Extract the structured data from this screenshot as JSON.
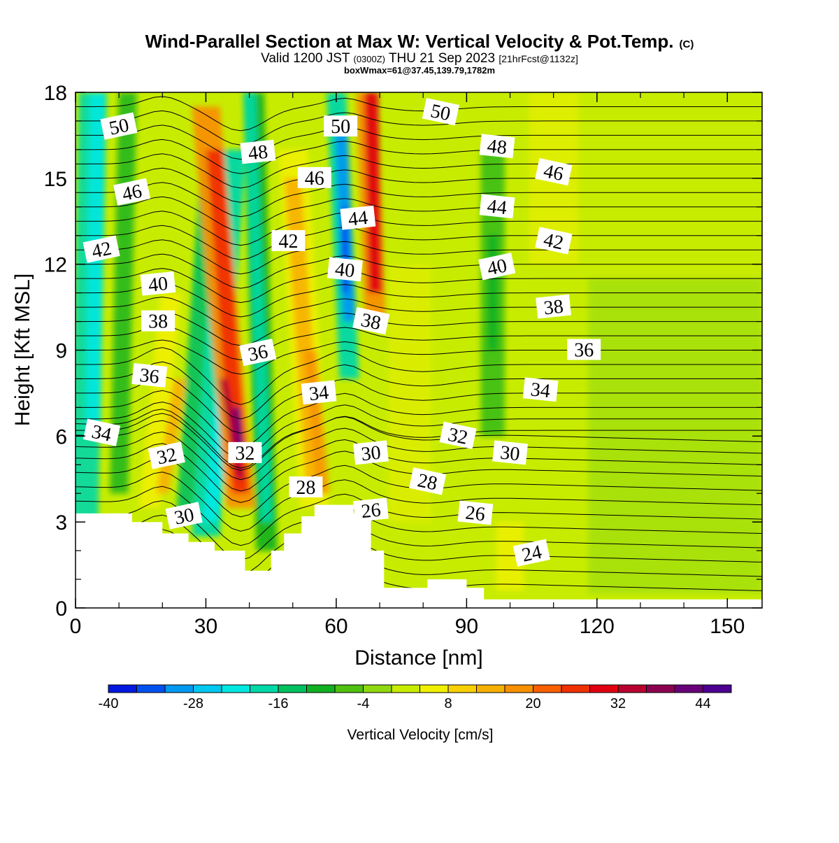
{
  "title": {
    "main": "Wind-Parallel Section at Max W: Vertical Velocity & Pot.Temp.",
    "copyright": "(C)",
    "valid_prefix": "Valid 1200 JST",
    "valid_utc": "(0300Z)",
    "valid_date": "THU 21 Sep 2023",
    "forecast": "[21hrFcst@1132z]",
    "subtitle": "boxWmax=61@37.45,139.79,1782m"
  },
  "chart_data": {
    "type": "heatmap",
    "xlabel": "Distance [nm]",
    "ylabel": "Height [Kft MSL]",
    "xlim": [
      0,
      158
    ],
    "ylim": [
      0,
      18
    ],
    "x_ticks": [
      "0",
      "30",
      "60",
      "90",
      "120",
      "150"
    ],
    "y_ticks": [
      "0",
      "3",
      "6",
      "9",
      "12",
      "15",
      "18"
    ],
    "colorbar": {
      "label": "Vertical Velocity [cm/s]",
      "range": [
        -40,
        48
      ],
      "tick_labels": [
        "-40",
        "-28",
        "-16",
        "-4",
        "8",
        "20",
        "32",
        "44"
      ],
      "colors": [
        "#0018e0",
        "#0050f0",
        "#0098f0",
        "#00c8f0",
        "#00e8e0",
        "#00d8a8",
        "#00c060",
        "#10b020",
        "#50c010",
        "#90d810",
        "#c8ec00",
        "#f0f000",
        "#f8d000",
        "#f8b000",
        "#f89000",
        "#f86000",
        "#f03000",
        "#e00010",
        "#b80030",
        "#8c0050",
        "#680078",
        "#4c0090"
      ]
    },
    "theta_contours": [
      {
        "label": "50",
        "x": 10,
        "y": 16.8
      },
      {
        "label": "50",
        "x": 61,
        "y": 16.8
      },
      {
        "label": "50",
        "x": 84,
        "y": 17.3
      },
      {
        "label": "48",
        "x": 42,
        "y": 15.9
      },
      {
        "label": "48",
        "x": 97,
        "y": 16.1
      },
      {
        "label": "46",
        "x": 13,
        "y": 14.5
      },
      {
        "label": "46",
        "x": 55,
        "y": 15.0
      },
      {
        "label": "46",
        "x": 110,
        "y": 15.2
      },
      {
        "label": "44",
        "x": 65,
        "y": 13.6
      },
      {
        "label": "44",
        "x": 97,
        "y": 14.0
      },
      {
        "label": "42",
        "x": 6,
        "y": 12.5
      },
      {
        "label": "42",
        "x": 49,
        "y": 12.8
      },
      {
        "label": "42",
        "x": 110,
        "y": 12.8
      },
      {
        "label": "40",
        "x": 19,
        "y": 11.3
      },
      {
        "label": "40",
        "x": 62,
        "y": 11.8
      },
      {
        "label": "40",
        "x": 97,
        "y": 11.9
      },
      {
        "label": "38",
        "x": 19,
        "y": 10.0
      },
      {
        "label": "38",
        "x": 68,
        "y": 10.0
      },
      {
        "label": "38",
        "x": 110,
        "y": 10.5
      },
      {
        "label": "36",
        "x": 17,
        "y": 8.1
      },
      {
        "label": "36",
        "x": 42,
        "y": 8.9
      },
      {
        "label": "36",
        "x": 117,
        "y": 9.0
      },
      {
        "label": "34",
        "x": 6,
        "y": 6.1
      },
      {
        "label": "34",
        "x": 56,
        "y": 7.5
      },
      {
        "label": "34",
        "x": 107,
        "y": 7.6
      },
      {
        "label": "32",
        "x": 21,
        "y": 5.3
      },
      {
        "label": "32",
        "x": 39,
        "y": 5.4
      },
      {
        "label": "32",
        "x": 88,
        "y": 6.0
      },
      {
        "label": "30",
        "x": 68,
        "y": 5.4
      },
      {
        "label": "30",
        "x": 100,
        "y": 5.4
      },
      {
        "label": "30",
        "x": 25,
        "y": 3.2
      },
      {
        "label": "28",
        "x": 53,
        "y": 4.2
      },
      {
        "label": "28",
        "x": 81,
        "y": 4.4
      },
      {
        "label": "26",
        "x": 68,
        "y": 3.4
      },
      {
        "label": "26",
        "x": 92,
        "y": 3.3
      },
      {
        "label": "24",
        "x": 105,
        "y": 1.9
      }
    ],
    "terrain_height": [
      [
        0,
        3.3
      ],
      [
        13,
        3.3
      ],
      [
        13,
        3.0
      ],
      [
        20,
        3.0
      ],
      [
        20,
        2.6
      ],
      [
        26,
        2.6
      ],
      [
        26,
        2.3
      ],
      [
        32,
        2.3
      ],
      [
        32,
        2.0
      ],
      [
        39,
        2.0
      ],
      [
        39,
        1.3
      ],
      [
        45,
        1.3
      ],
      [
        45,
        2.0
      ],
      [
        48,
        2.0
      ],
      [
        48,
        2.6
      ],
      [
        52,
        2.6
      ],
      [
        52,
        3.2
      ],
      [
        55,
        3.2
      ],
      [
        55,
        3.6
      ],
      [
        60,
        3.6
      ],
      [
        60,
        3.6
      ],
      [
        64,
        3.6
      ],
      [
        64,
        3.3
      ],
      [
        68,
        3.3
      ],
      [
        68,
        2.0
      ],
      [
        71,
        2.0
      ],
      [
        71,
        0.7
      ],
      [
        81,
        0.7
      ],
      [
        81,
        1.0
      ],
      [
        90,
        1.0
      ],
      [
        90,
        0.7
      ],
      [
        94,
        0.7
      ],
      [
        94,
        0.3
      ],
      [
        158,
        0.3
      ]
    ]
  }
}
